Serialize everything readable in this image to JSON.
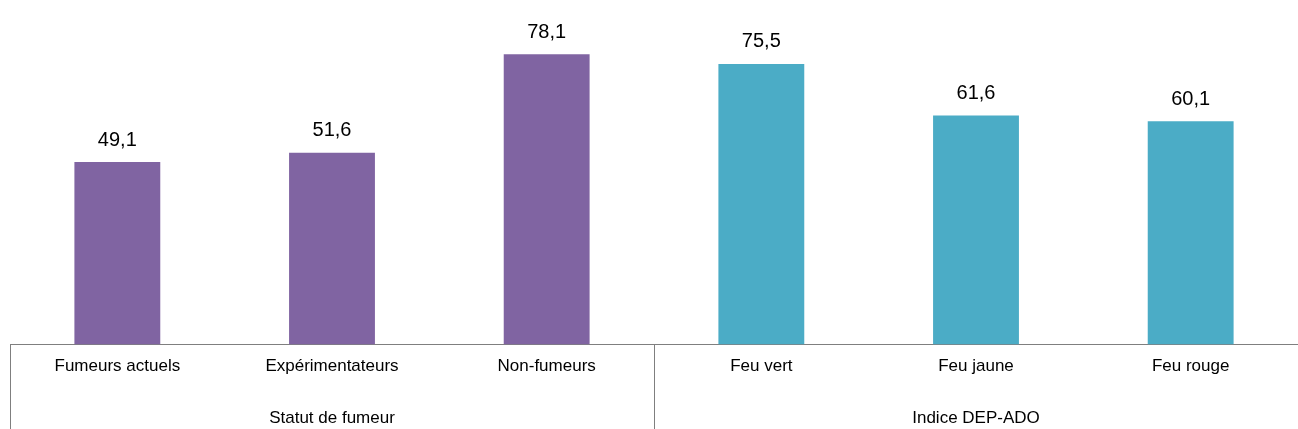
{
  "chart_data": {
    "type": "bar",
    "categories": [
      "Fumeurs actuels",
      "Expérimentateurs",
      "Non-fumeurs",
      "Feu vert",
      "Feu jaune",
      "Feu rouge"
    ],
    "values": [
      49.1,
      51.6,
      78.1,
      75.5,
      61.6,
      60.1
    ],
    "colors": [
      "#8064a2",
      "#8064a2",
      "#8064a2",
      "#4bacc6",
      "#4bacc6",
      "#4bacc6"
    ],
    "annotations": [
      "Statut de fumeur",
      "Indice DEP-ADO"
    ],
    "value_labels": [
      "49,1",
      "51,6",
      "78,1",
      "75,5",
      "61,6",
      "60,1"
    ],
    "grid": false,
    "legend": false
  }
}
